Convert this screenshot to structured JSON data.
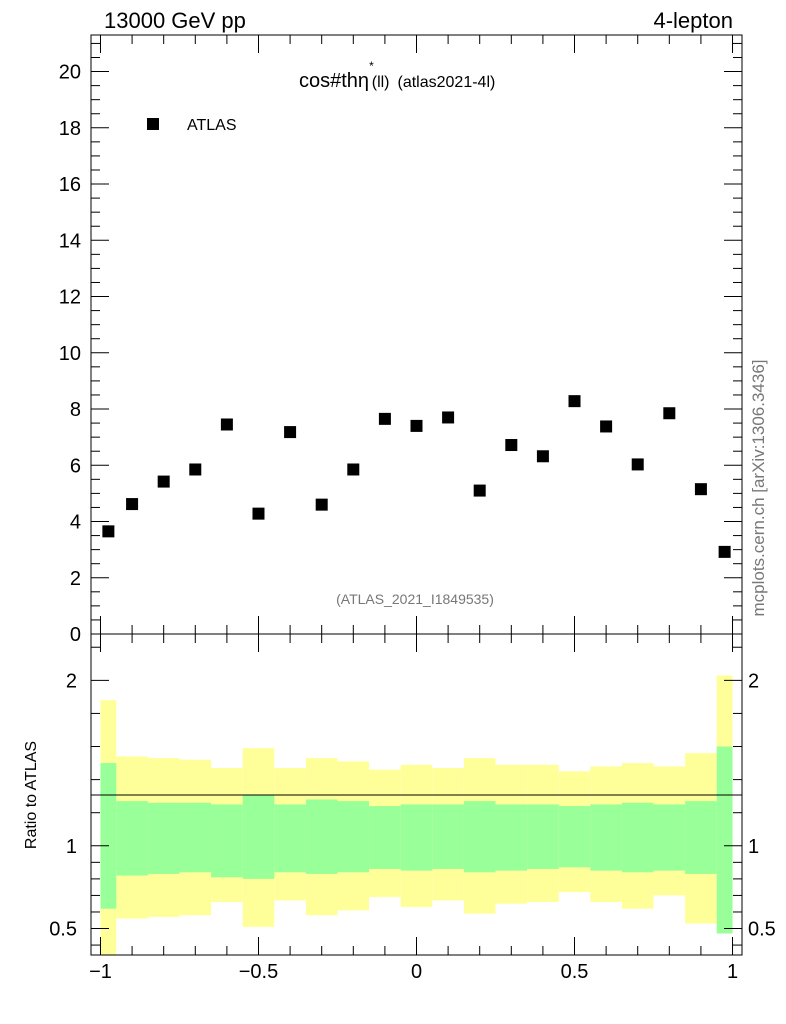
{
  "header": {
    "left_text": "13000 GeV pp",
    "right_text": "4-lepton"
  },
  "side_label": "mcplots.cern.ch [arXiv:1306.3436]",
  "chart_data": {
    "type": "scatter",
    "title_main": "cos#thη",
    "title_sup": "*",
    "title_sub": "(ll)",
    "title_suffix": "(atlas2021-4l)",
    "legend": [
      {
        "name": "ATLAS",
        "marker": "square",
        "color": "#000000",
        "placement": "top-left"
      }
    ],
    "watermark": "(ATLAS_2021_I1849535)",
    "xlim": [
      -1.03,
      1.03
    ],
    "ylim": [
      0,
      21.3
    ],
    "y_ticks": [
      0,
      2,
      4,
      6,
      8,
      10,
      12,
      14,
      16,
      18,
      20
    ],
    "y_tick_labels": [
      "0",
      "2",
      "4",
      "6",
      "8",
      "10",
      "12",
      "14",
      "16",
      "18",
      "20"
    ],
    "x_ticks": [
      -1,
      -0.5,
      0,
      0.5,
      1
    ],
    "x_tick_labels": [
      "−1",
      "−0.5",
      "0",
      "0.5",
      "1"
    ],
    "series": [
      {
        "name": "ATLAS",
        "x": [
          -0.975,
          -0.9,
          -0.8,
          -0.7,
          -0.6,
          -0.5,
          -0.4,
          -0.3,
          -0.2,
          -0.1,
          0.0,
          0.1,
          0.2,
          0.3,
          0.4,
          0.5,
          0.6,
          0.7,
          0.8,
          0.9,
          0.975
        ],
        "y": [
          3.65,
          4.62,
          5.42,
          5.85,
          7.45,
          4.28,
          7.18,
          4.6,
          5.85,
          7.65,
          7.4,
          7.7,
          5.1,
          6.72,
          6.32,
          8.28,
          7.38,
          6.03,
          7.85,
          5.15,
          2.92
        ]
      }
    ],
    "ratio": {
      "ylabel": "Ratio to ATLAS",
      "ylim": [
        0.34,
        2.28
      ],
      "y_ticks": [
        0.5,
        1,
        2
      ],
      "y_tick_labels": [
        "0.5",
        "1",
        "2"
      ],
      "reference_line": 1,
      "bin_edges": [
        -1.0,
        -0.95,
        -0.85,
        -0.75,
        -0.65,
        -0.55,
        -0.45,
        -0.35,
        -0.25,
        -0.15,
        -0.05,
        0.05,
        0.15,
        0.25,
        0.35,
        0.45,
        0.55,
        0.65,
        0.75,
        0.85,
        0.95,
        1.0
      ],
      "band_inner": {
        "color": "#99ff99",
        "low": [
          0.62,
          0.82,
          0.83,
          0.84,
          0.81,
          0.8,
          0.84,
          0.83,
          0.84,
          0.86,
          0.85,
          0.86,
          0.84,
          0.85,
          0.86,
          0.87,
          0.85,
          0.84,
          0.85,
          0.83,
          0.47
        ],
        "high": [
          1.5,
          1.27,
          1.26,
          1.26,
          1.25,
          1.31,
          1.25,
          1.28,
          1.27,
          1.24,
          1.25,
          1.25,
          1.27,
          1.25,
          1.25,
          1.24,
          1.25,
          1.26,
          1.25,
          1.27,
          1.6
        ]
      },
      "band_outer": {
        "color": "#ffff99",
        "low": [
          0.34,
          0.56,
          0.57,
          0.58,
          0.66,
          0.51,
          0.67,
          0.58,
          0.61,
          0.69,
          0.63,
          0.67,
          0.59,
          0.65,
          0.66,
          0.72,
          0.66,
          0.62,
          0.7,
          0.53,
          0.47
        ],
        "high": [
          1.88,
          1.54,
          1.53,
          1.52,
          1.47,
          1.59,
          1.47,
          1.53,
          1.51,
          1.46,
          1.49,
          1.47,
          1.53,
          1.49,
          1.49,
          1.45,
          1.48,
          1.5,
          1.48,
          1.56,
          2.03
        ]
      }
    }
  }
}
